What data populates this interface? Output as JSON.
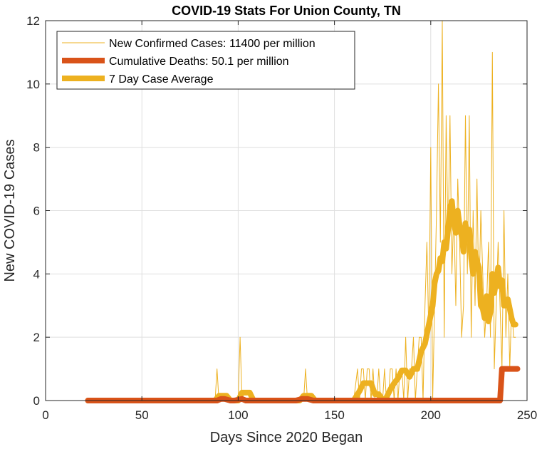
{
  "chart_data": {
    "type": "line",
    "title": "COVID-19 Stats For Union County, TN",
    "xlabel": "Days Since 2020 Began",
    "ylabel": "New COVID-19 Cases",
    "xlim": [
      0,
      250
    ],
    "ylim": [
      0,
      12
    ],
    "xticks": [
      0,
      50,
      100,
      150,
      200,
      250
    ],
    "yticks": [
      0,
      2,
      4,
      6,
      8,
      10,
      12
    ],
    "grid": true,
    "legend_position": "top-left",
    "series": [
      {
        "name": "New Confirmed Cases: 11400 per million",
        "color": "#EDB120",
        "line_style": "thin",
        "x": [
          22,
          50,
          85,
          88,
          89,
          90,
          98,
          100,
          101,
          102,
          104,
          130,
          134,
          135,
          136,
          140,
          160,
          162,
          163,
          164,
          165,
          166,
          167,
          168,
          169,
          170,
          171,
          172,
          173,
          174,
          175,
          176,
          177,
          178,
          179,
          180,
          181,
          182,
          183,
          184,
          185,
          186,
          187,
          188,
          189,
          190,
          191,
          192,
          193,
          194,
          195,
          196,
          197,
          198,
          199,
          200,
          201,
          202,
          203,
          204,
          205,
          206,
          207,
          208,
          209,
          210,
          211,
          212,
          213,
          214,
          215,
          216,
          217,
          218,
          219,
          220,
          221,
          222,
          223,
          224,
          225,
          226,
          227,
          228,
          229,
          230,
          231,
          232,
          233,
          234,
          235,
          236,
          237,
          238,
          239,
          240,
          241,
          242,
          243,
          244
        ],
        "y": [
          0,
          0,
          0,
          0,
          1,
          0,
          0,
          0,
          2,
          0,
          0,
          0,
          0,
          1,
          0,
          0,
          0,
          1,
          0,
          1,
          1,
          0,
          1,
          1,
          0,
          1,
          0,
          0,
          1,
          0,
          0,
          1,
          0,
          0,
          1,
          1,
          0,
          1,
          0,
          1,
          1,
          0,
          2,
          0,
          1,
          1,
          2,
          0,
          1,
          2,
          2,
          0,
          3,
          5,
          2,
          8,
          0,
          3,
          6,
          10,
          5,
          12,
          2,
          9,
          5,
          9,
          4,
          6,
          3,
          7,
          5,
          2,
          3,
          9,
          4,
          9,
          2,
          6,
          3,
          7,
          3,
          6,
          4,
          2,
          3,
          5,
          2,
          11,
          1,
          3,
          5,
          3,
          1,
          6,
          2,
          4,
          1,
          3,
          2,
          2
        ]
      },
      {
        "name": "Cumulative Deaths: 50.1 per million",
        "color": "#D95319",
        "line_style": "thick",
        "x": [
          22,
          89,
          91,
          93,
          96,
          98,
          102,
          104,
          130,
          133,
          136,
          139,
          160,
          236,
          237,
          238,
          245
        ],
        "y": [
          0,
          0,
          0.05,
          0.05,
          0,
          0,
          0.05,
          0,
          0,
          0.05,
          0.05,
          0,
          0,
          0,
          1,
          1,
          1
        ]
      },
      {
        "name": "7 Day Case Average",
        "color": "#EDB120",
        "line_style": "thick",
        "x": [
          22,
          88,
          90,
          92,
          94,
          96,
          100,
          102,
          104,
          106,
          108,
          110,
          132,
          134,
          138,
          140,
          160,
          163,
          165,
          167,
          169,
          171,
          173,
          175,
          177,
          179,
          181,
          183,
          185,
          187,
          189,
          191,
          193,
          195,
          197,
          199,
          201,
          202,
          203,
          204,
          205,
          206,
          207,
          208,
          209,
          210,
          211,
          212,
          213,
          214,
          215,
          216,
          217,
          218,
          219,
          220,
          221,
          222,
          223,
          224,
          225,
          226,
          227,
          228,
          229,
          230,
          231,
          232,
          233,
          234,
          235,
          236,
          237,
          238,
          239,
          240,
          241,
          242,
          243,
          244
        ],
        "y": [
          0,
          0,
          0.15,
          0.15,
          0.15,
          0,
          0,
          0.25,
          0.25,
          0.25,
          0,
          0,
          0,
          0.15,
          0.15,
          0,
          0,
          0.3,
          0.55,
          0.55,
          0.55,
          0.2,
          0.2,
          0,
          0.1,
          0.35,
          0.55,
          0.7,
          0.95,
          0.95,
          0.75,
          1.0,
          1.0,
          1.55,
          1.8,
          2.4,
          3.0,
          3.7,
          4.0,
          4.1,
          4.5,
          4.4,
          5.0,
          4.8,
          5.4,
          6.1,
          6.3,
          5.6,
          5.3,
          6.0,
          5.5,
          5.2,
          4.7,
          5.6,
          5.2,
          5.4,
          4.5,
          4.0,
          4.7,
          4.4,
          4.2,
          3.0,
          2.9,
          2.6,
          3.3,
          2.5,
          2.8,
          4.0,
          3.4,
          3.8,
          4.2,
          3.6,
          3.8,
          3.0,
          3.0,
          3.2,
          2.9,
          2.6,
          2.4,
          2.4
        ]
      }
    ]
  }
}
